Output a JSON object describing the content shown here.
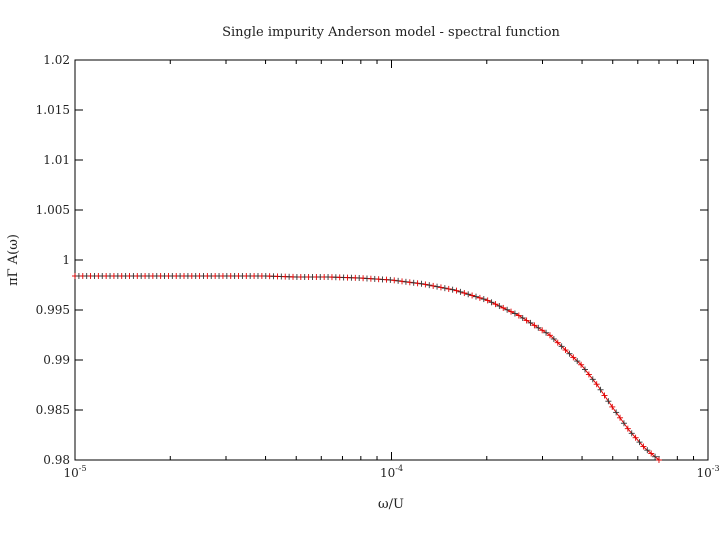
{
  "chart_data": {
    "type": "scatter",
    "title": "Single impurity Anderson model - spectral function",
    "xlabel": "ω/U",
    "ylabel": "πΓ A(ω)",
    "x_scale": "log",
    "xlim": [
      1e-05,
      0.001
    ],
    "ylim": [
      0.98,
      1.02
    ],
    "grid": false,
    "legend": "none",
    "x_ticks": [
      {
        "value": 1e-05,
        "base": "10",
        "exp": "-5"
      },
      {
        "value": 0.0001,
        "base": "10",
        "exp": "-4"
      },
      {
        "value": 0.001,
        "base": "10",
        "exp": "-3"
      }
    ],
    "y_ticks": [
      {
        "value": 0.98,
        "label": "0.98"
      },
      {
        "value": 0.985,
        "label": "0.985"
      },
      {
        "value": 0.99,
        "label": "0.99"
      },
      {
        "value": 0.995,
        "label": "0.995"
      },
      {
        "value": 1.0,
        "label": "1"
      },
      {
        "value": 1.005,
        "label": "1.005"
      },
      {
        "value": 1.01,
        "label": "1.01"
      },
      {
        "value": 1.015,
        "label": "1.015"
      },
      {
        "value": 1.02,
        "label": "1.02"
      }
    ],
    "series": [
      {
        "color": "#e00000",
        "x": [
          1e-05,
          1.26e-05,
          1.58e-05,
          2e-05,
          2.51e-05,
          3.16e-05,
          3.98e-05,
          5.01e-05,
          6.31e-05,
          7.94e-05,
          0.0001,
          0.000126,
          0.000158,
          0.0002,
          0.000251,
          0.000316,
          0.000398,
          0.000447,
          0.000501,
          0.000562,
          0.000631,
          0.0007
        ],
        "y": [
          0.9984,
          0.9984,
          0.9984,
          0.9984,
          0.9984,
          0.9984,
          0.9984,
          0.9983,
          0.9983,
          0.9982,
          0.998,
          0.9976,
          0.997,
          0.996,
          0.9945,
          0.9925,
          0.9895,
          0.9875,
          0.9852,
          0.983,
          0.9812,
          0.98
        ]
      }
    ]
  }
}
